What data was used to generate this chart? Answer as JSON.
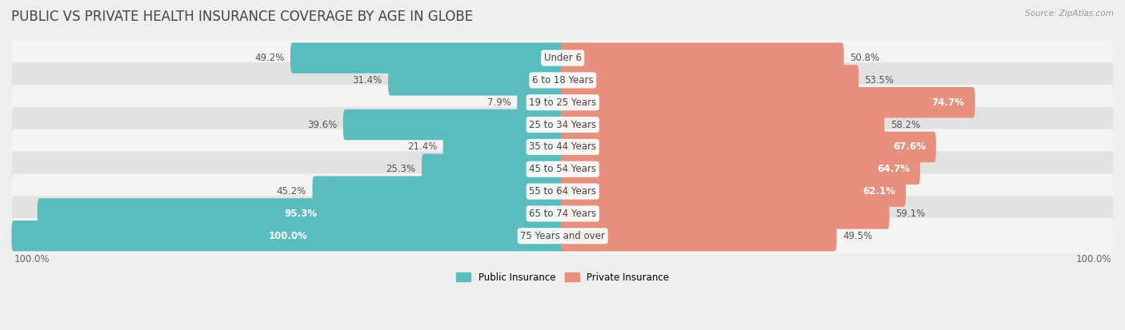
{
  "title": "PUBLIC VS PRIVATE HEALTH INSURANCE COVERAGE BY AGE IN GLOBE",
  "source": "Source: ZipAtlas.com",
  "categories": [
    "Under 6",
    "6 to 18 Years",
    "19 to 25 Years",
    "25 to 34 Years",
    "35 to 44 Years",
    "45 to 54 Years",
    "55 to 64 Years",
    "65 to 74 Years",
    "75 Years and over"
  ],
  "public_values": [
    49.2,
    31.4,
    7.9,
    39.6,
    21.4,
    25.3,
    45.2,
    95.3,
    100.0
  ],
  "private_values": [
    50.8,
    53.5,
    74.7,
    58.2,
    67.6,
    64.7,
    62.1,
    59.1,
    49.5
  ],
  "public_color": "#5bbcbd",
  "private_color": "#e8907e",
  "bg_color": "#eeeeee",
  "row_bg_even": "#e2e2e2",
  "row_bg_odd": "#f4f4f4",
  "max_value": 100.0,
  "legend_public": "Public Insurance",
  "legend_private": "Private Insurance",
  "title_fontsize": 12,
  "label_fontsize": 8.5,
  "value_fontsize": 8.5
}
